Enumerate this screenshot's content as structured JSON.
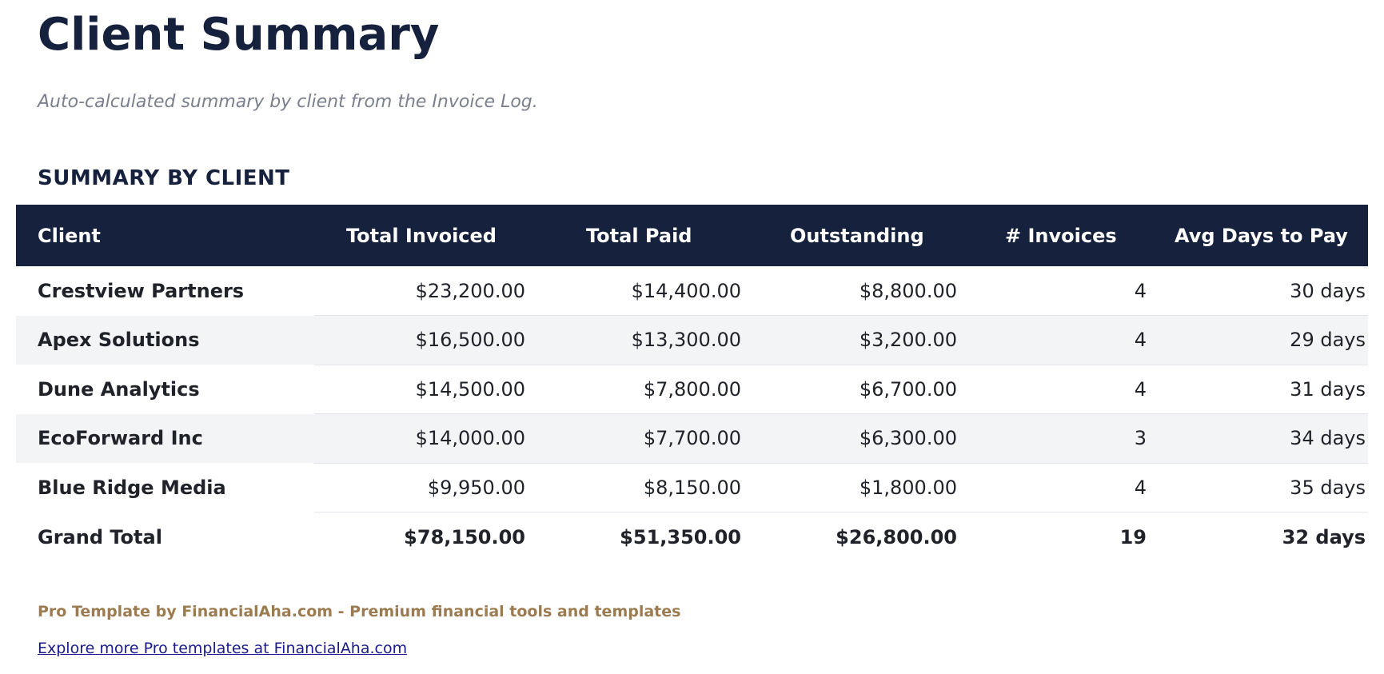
{
  "page": {
    "title": "Client Summary",
    "subtitle": "Auto-calculated summary by client from the Invoice Log."
  },
  "section": {
    "title": "SUMMARY BY CLIENT"
  },
  "table": {
    "columns": [
      "Client",
      "Total Invoiced",
      "Total Paid",
      "Outstanding",
      "# Invoices",
      "Avg Days to Pay"
    ],
    "rows": [
      {
        "client": "Crestview Partners",
        "total_invoiced": "$23,200.00",
        "total_paid": "$14,400.00",
        "outstanding": "$8,800.00",
        "invoices": "4",
        "avg_days": "30 days"
      },
      {
        "client": "Apex Solutions",
        "total_invoiced": "$16,500.00",
        "total_paid": "$13,300.00",
        "outstanding": "$3,200.00",
        "invoices": "4",
        "avg_days": "29 days"
      },
      {
        "client": "Dune Analytics",
        "total_invoiced": "$14,500.00",
        "total_paid": "$7,800.00",
        "outstanding": "$6,700.00",
        "invoices": "4",
        "avg_days": "31 days"
      },
      {
        "client": "EcoForward Inc",
        "total_invoiced": "$14,000.00",
        "total_paid": "$7,700.00",
        "outstanding": "$6,300.00",
        "invoices": "3",
        "avg_days": "34 days"
      },
      {
        "client": "Blue Ridge Media",
        "total_invoiced": "$9,950.00",
        "total_paid": "$8,150.00",
        "outstanding": "$1,800.00",
        "invoices": "4",
        "avg_days": "35 days"
      }
    ],
    "total": {
      "client": "Grand Total",
      "total_invoiced": "$78,150.00",
      "total_paid": "$51,350.00",
      "outstanding": "$26,800.00",
      "invoices": "19",
      "avg_days": "32 days"
    }
  },
  "footer": {
    "brand": "Pro Template by FinancialAha.com - Premium financial tools and templates",
    "link": "Explore more Pro templates at FinancialAha.com"
  },
  "colors": {
    "header_bg": "#16213e",
    "title": "#16213e",
    "stripe": "#f3f4f6",
    "brand": "#9b7b4f",
    "link": "#1a1a8c"
  }
}
